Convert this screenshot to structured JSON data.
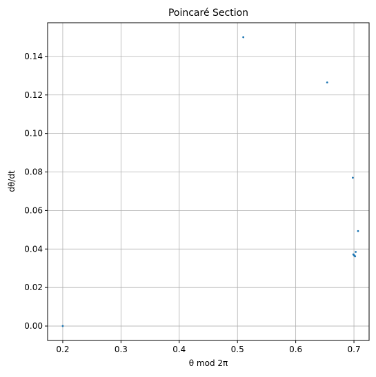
{
  "chart_data": {
    "type": "scatter",
    "title": "Poincaré Section",
    "xlabel": "θ mod 2π",
    "ylabel": "dθ/dt",
    "xlim": [
      0.174,
      0.726
    ],
    "ylim": [
      -0.0075,
      0.1575
    ],
    "xticks": [
      0.2,
      0.3,
      0.4,
      0.5,
      0.6,
      0.7
    ],
    "xtick_labels": [
      "0.2",
      "0.3",
      "0.4",
      "0.5",
      "0.6",
      "0.7"
    ],
    "yticks": [
      0.0,
      0.02,
      0.04,
      0.06,
      0.08,
      0.1,
      0.12,
      0.14
    ],
    "ytick_labels": [
      "0.00",
      "0.02",
      "0.04",
      "0.06",
      "0.08",
      "0.10",
      "0.12",
      "0.14"
    ],
    "grid": true,
    "marker_color": "#1f77b4",
    "points": [
      {
        "x": 0.2,
        "y": 0.0
      },
      {
        "x": 0.51,
        "y": 0.15
      },
      {
        "x": 0.654,
        "y": 0.1265
      },
      {
        "x": 0.698,
        "y": 0.077
      },
      {
        "x": 0.707,
        "y": 0.0493
      },
      {
        "x": 0.703,
        "y": 0.0385
      },
      {
        "x": 0.699,
        "y": 0.0372
      },
      {
        "x": 0.7,
        "y": 0.0368
      },
      {
        "x": 0.701,
        "y": 0.0365
      },
      {
        "x": 0.702,
        "y": 0.0362
      }
    ]
  }
}
